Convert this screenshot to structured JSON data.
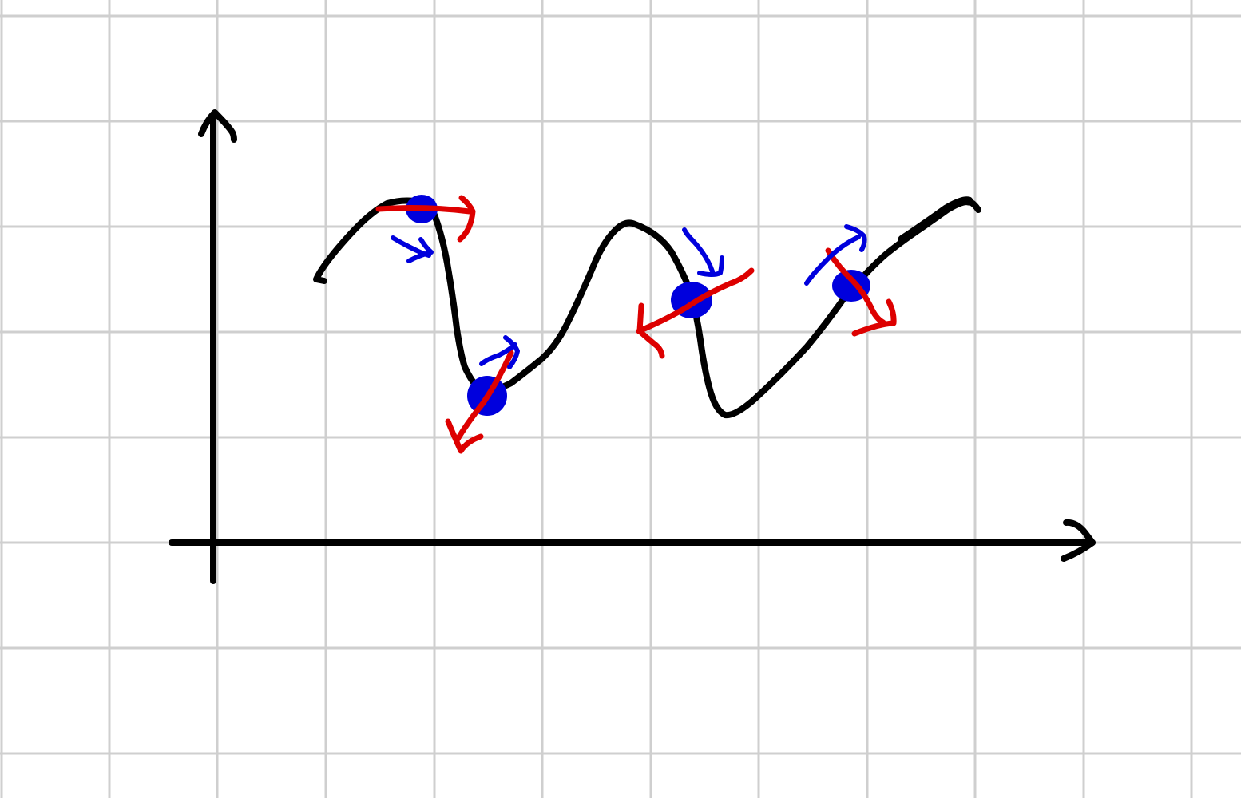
{
  "diagram": {
    "kind": "hand-drawn curve with tangent vectors and rotation arrows on grid paper",
    "colors": {
      "background": "#ffffff",
      "grid": "#cfcfcf",
      "axes": "#000000",
      "curve": "#000000",
      "point": "#0000dd",
      "tangent": "#dd0000",
      "rotation": "#0000dd"
    },
    "grid": true,
    "axes": {
      "x_arrow": true,
      "y_arrow": true
    },
    "points": [
      {
        "id": "p1",
        "tangent_direction": "right",
        "rotation_sense": "clockwise"
      },
      {
        "id": "p2",
        "tangent_direction": "down-left",
        "rotation_sense": "counterclockwise"
      },
      {
        "id": "p3",
        "tangent_direction": "left",
        "rotation_sense": "clockwise"
      },
      {
        "id": "p4",
        "tangent_direction": "down-right",
        "rotation_sense": "counterclockwise"
      }
    ]
  }
}
